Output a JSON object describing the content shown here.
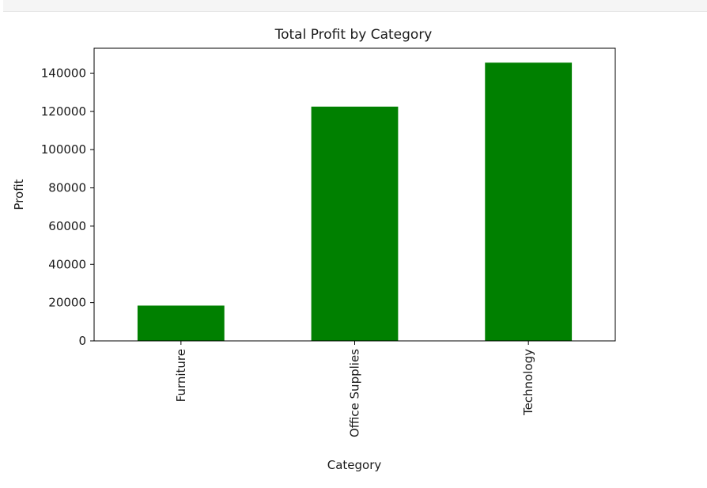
{
  "chart_data": {
    "type": "bar",
    "title": "Total Profit by Category",
    "xlabel": "Category",
    "ylabel": "Profit",
    "categories": [
      "Furniture",
      "Office Supplies",
      "Technology"
    ],
    "values": [
      18451,
      122491,
      145455
    ],
    "ylim": [
      0,
      153000
    ],
    "yticks": [
      0,
      20000,
      40000,
      60000,
      80000,
      100000,
      120000,
      140000
    ],
    "bar_color": "#008000",
    "grid": false,
    "legend": "none"
  }
}
